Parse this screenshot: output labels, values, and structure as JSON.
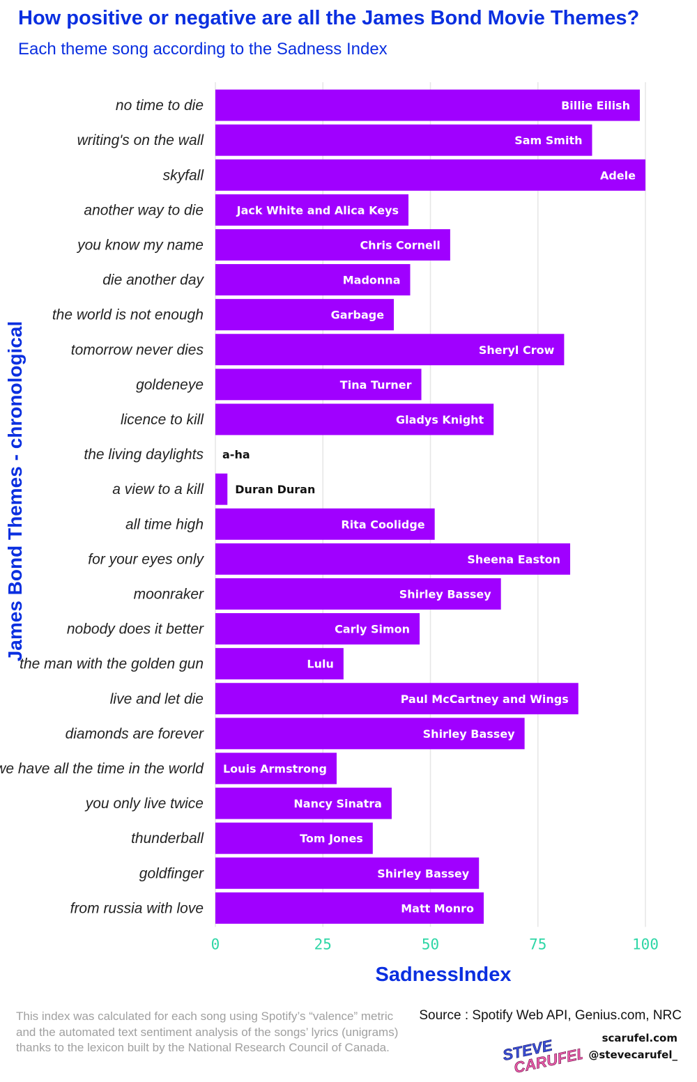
{
  "title": "How positive or negative are all the James Bond Movie Themes?",
  "subtitle": "Each theme song according to the Sadness Index",
  "chart_data": {
    "type": "bar",
    "orientation": "horizontal",
    "categories": [
      "no time to die",
      "writing's on the wall",
      "skyfall",
      "another way to die",
      "you know my name",
      "die another day",
      "the world is not enough",
      "tomorrow never dies",
      "goldeneye",
      "licence to kill",
      "the living daylights",
      "a view to a kill",
      "all time high",
      "for your eyes only",
      "moonraker",
      "nobody does it better",
      "the man with the golden gun",
      "live and let die",
      "diamonds are forever",
      "we have all the time in the world",
      "you only live twice",
      "thunderball",
      "goldfinger",
      "from russia with love"
    ],
    "values": [
      98.7,
      87.6,
      100,
      44.9,
      54.6,
      45.3,
      41.5,
      81.1,
      47.9,
      64.7,
      0,
      2.8,
      51.0,
      82.5,
      66.4,
      47.5,
      29.8,
      84.4,
      71.9,
      28.2,
      41.0,
      36.6,
      61.3,
      62.4
    ],
    "data_labels": [
      "Billie Eilish",
      "Sam Smith",
      "Adele",
      "Jack White and Alica Keys",
      "Chris Cornell",
      "Madonna",
      "Garbage",
      "Sheryl Crow",
      "Tina Turner",
      "Gladys Knight",
      "a-ha",
      "Duran Duran",
      "Rita Coolidge",
      "Sheena Easton",
      "Shirley Bassey",
      "Carly Simon",
      "Lulu",
      "Paul McCartney and Wings",
      "Shirley Bassey",
      "Louis Armstrong",
      "Nancy Sinatra",
      "Tom Jones",
      "Shirley Bassey",
      "Matt Monro"
    ],
    "xlabel": "SadnessIndex",
    "ylabel": "James Bond Themes - chronological",
    "xlim": [
      0,
      100
    ],
    "xticks": [
      0,
      25,
      50,
      75,
      100
    ],
    "xtick_labels": [
      "0",
      "25",
      "50",
      "75",
      "100"
    ],
    "grid": "vertical",
    "legend": "none",
    "bar_color": "#a000ff",
    "title": "How positive or negative are all the James Bond Movie Themes?",
    "subtitle": "Each theme song according to the Sadness Index"
  },
  "colors": {
    "title": "#0a2fe0",
    "bar": "#a000ff",
    "tick": "#2ed6a6",
    "grid": "#e6e6e6",
    "note": "#a0a0a0"
  },
  "footer": {
    "note": "This index was calculated for each song using Spotify’s “valence” metric and the automated text sentiment analysis of the songs’ lyrics (unigrams) thanks to the lexicon built by the National Research Council of Canada.",
    "source": "Source : Spotify Web API, Genius.com, NRC",
    "site": "scarufel.com",
    "handle": "@stevecarufel_",
    "logo_line1": "STEVE",
    "logo_line2": "CARUFEL"
  }
}
